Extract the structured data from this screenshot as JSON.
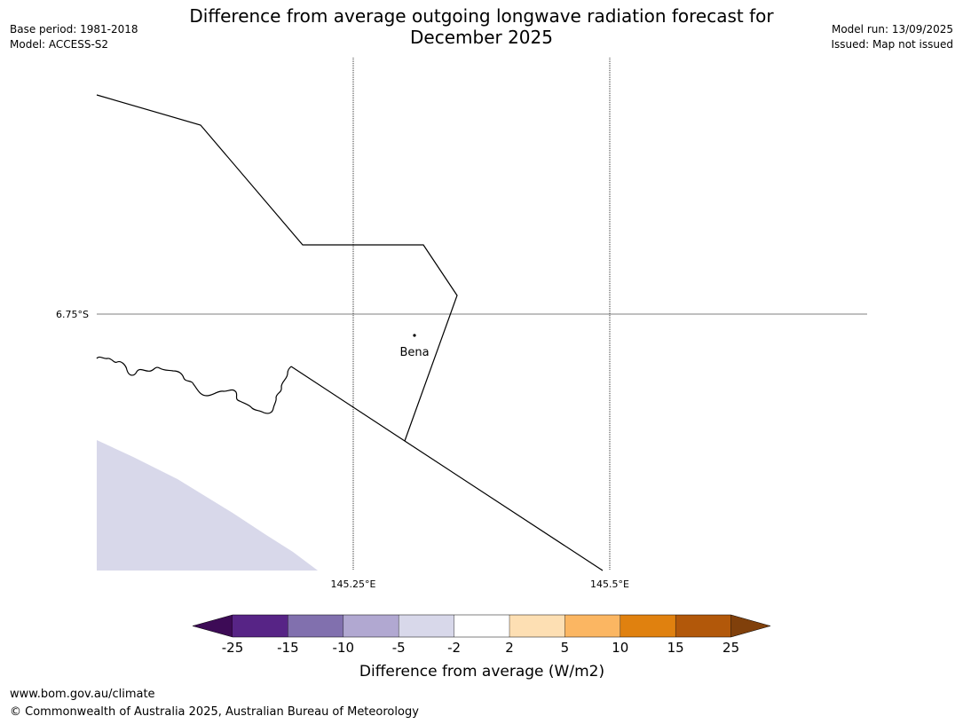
{
  "header": {
    "title_line1": "Difference from average outgoing longwave radiation forecast for",
    "title_line2": "December 2025",
    "base_period": "Base period: 1981-2018",
    "model": "Model: ACCESS-S2",
    "model_run": "Model run: 13/09/2025",
    "issued": "Issued: Map not issued"
  },
  "map": {
    "gridlines": {
      "lat_label": "6.75°S",
      "lon_labels": [
        "145.25°E",
        "145.5°E"
      ]
    },
    "places": [
      {
        "name": "Bena"
      }
    ],
    "shaded_region_color": "#d8d8ea"
  },
  "colorbar": {
    "label": "Difference from average (W/m2)",
    "ticks": [
      "-25",
      "-15",
      "-10",
      "-5",
      "-2",
      "2",
      "5",
      "10",
      "15",
      "25"
    ],
    "colors": [
      "#3d0b56",
      "#572486",
      "#8170ae",
      "#b1a8d1",
      "#d8d8ea",
      "#ffffff",
      "#fddfb3",
      "#fbb662",
      "#e0810f",
      "#b2580a",
      "#80400b"
    ]
  },
  "footer": {
    "url": "www.bom.gov.au/climate",
    "copyright": "© Commonwealth of Australia 2025, Australian Bureau of Meteorology"
  }
}
